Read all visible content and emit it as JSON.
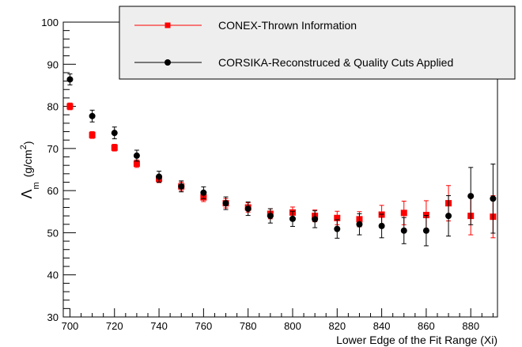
{
  "chart_data": {
    "type": "scatter",
    "title": "",
    "xlabel": "Lower Edge of the Fit Range (Xi)",
    "ylabel": {
      "main": "Λ",
      "sub": "m",
      "unit_open": "(g/cm",
      "unit_sup": "2",
      "unit_close": ")"
    },
    "xlim": [
      697,
      892
    ],
    "ylim": [
      30,
      100
    ],
    "xticks": [
      700,
      720,
      740,
      760,
      780,
      800,
      820,
      840,
      860,
      880
    ],
    "yticks": [
      30,
      40,
      50,
      60,
      70,
      80,
      90,
      100
    ],
    "grid": false,
    "legend_position": "top-right",
    "series": [
      {
        "name": "CONEX-Thrown Information",
        "color": "#ff0000",
        "marker": "square",
        "x": [
          700,
          710,
          720,
          730,
          740,
          750,
          760,
          770,
          780,
          790,
          800,
          810,
          820,
          830,
          840,
          850,
          860,
          870,
          880,
          890
        ],
        "y": [
          80.0,
          73.2,
          70.2,
          66.4,
          62.8,
          61.0,
          58.4,
          57.0,
          56.0,
          54.5,
          54.8,
          54.0,
          53.5,
          53.2,
          54.3,
          54.7,
          54.2,
          57.0,
          54.0,
          53.8
        ],
        "err": [
          0.8,
          0.8,
          0.8,
          0.9,
          0.9,
          1.0,
          1.0,
          1.1,
          1.1,
          1.2,
          1.3,
          1.4,
          1.6,
          1.8,
          2.2,
          2.8,
          3.4,
          4.2,
          4.5,
          5.0
        ]
      },
      {
        "name": "CORSIKA-Reconstruced & Quality Cuts Applied",
        "color": "#000000",
        "marker": "circle",
        "x": [
          700,
          710,
          720,
          730,
          740,
          750,
          760,
          770,
          780,
          790,
          800,
          810,
          820,
          830,
          840,
          850,
          860,
          870,
          880,
          890
        ],
        "y": [
          86.4,
          77.7,
          73.7,
          68.3,
          63.3,
          61.0,
          59.5,
          57.0,
          55.7,
          54.0,
          53.3,
          53.2,
          50.9,
          52.0,
          51.6,
          50.5,
          50.5,
          54.0,
          58.7,
          58.1
        ],
        "err": [
          1.3,
          1.4,
          1.4,
          1.3,
          1.3,
          1.3,
          1.4,
          1.5,
          1.6,
          1.7,
          1.8,
          2.0,
          2.2,
          2.5,
          2.8,
          3.1,
          3.6,
          4.8,
          6.8,
          8.2
        ]
      }
    ]
  }
}
